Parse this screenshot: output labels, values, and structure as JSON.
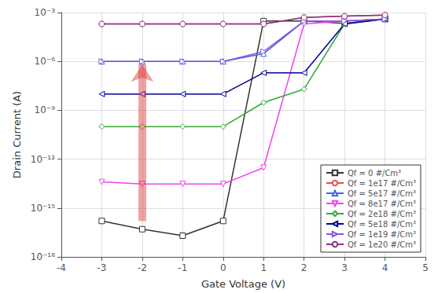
{
  "chart_data": {
    "type": "line",
    "title": "",
    "xlabel": "Gate Voltage (V)",
    "ylabel": "Drain Current (A)",
    "log": "y",
    "grid": true,
    "legend": "lower right",
    "x": [
      -3,
      -2,
      -1,
      0,
      1,
      2,
      3,
      4
    ],
    "xlim": [
      -4,
      5
    ],
    "xticks": [
      -4,
      -3,
      -2,
      -1,
      0,
      1,
      2,
      3,
      4,
      5
    ],
    "ylim": [
      1e-18,
      0.001
    ],
    "yticks": [
      {
        "value": 1e-18,
        "label": "10⁻¹⁸"
      },
      {
        "value": 1e-15,
        "label": "10⁻¹⁵"
      },
      {
        "value": 1e-12,
        "label": "10⁻¹²"
      },
      {
        "value": 1e-09,
        "label": "10⁻⁹"
      },
      {
        "value": 1e-06,
        "label": "10⁻⁶"
      },
      {
        "value": 0.001,
        "label": "10⁻³"
      }
    ],
    "series": [
      {
        "name": "Qf = 0 #/Cm³",
        "color": "#333333",
        "marker": "square",
        "values": [
          1.6e-16,
          5e-17,
          2e-17,
          1.6e-16,
          0.0003,
          0.0003,
          0.00022,
          0.0004
        ]
      },
      {
        "name": "Qf = 1e17 #/Cm³",
        "color": "#e05050",
        "marker": "circle",
        "values": [
          0.0002,
          0.0002,
          0.0002,
          0.0002,
          0.0002,
          0.0005,
          0.0006,
          0.0007
        ]
      },
      {
        "name": "Qf = 5e17 #/Cm³",
        "color": "#4466dd",
        "marker": "triangle-up",
        "values": [
          1e-06,
          1e-06,
          1e-06,
          1e-06,
          3e-06,
          0.0003,
          0.0003,
          0.0004
        ]
      },
      {
        "name": "Qf = 8e17 #/Cm³",
        "color": "#ee44ee",
        "marker": "triangle-down",
        "values": [
          4e-14,
          3e-14,
          3e-14,
          3e-14,
          3e-13,
          0.0002,
          0.0003,
          0.0004
        ]
      },
      {
        "name": "Qf = 2e18 #/Cm³",
        "color": "#33aa33",
        "marker": "diamond",
        "values": [
          1e-10,
          1e-10,
          1e-10,
          1e-10,
          3e-09,
          2e-08,
          0.0002,
          0.0004
        ]
      },
      {
        "name": "Qf = 5e18 #/Cm³",
        "color": "#000099",
        "marker": "triangle-left",
        "values": [
          1e-08,
          1e-08,
          1e-08,
          1e-08,
          2e-07,
          2e-07,
          0.0002,
          0.0004
        ]
      },
      {
        "name": "Qf = 1e19 #/Cm³",
        "color": "#8855dd",
        "marker": "triangle-right",
        "values": [
          1e-06,
          1e-06,
          1e-06,
          1e-06,
          4e-06,
          0.0003,
          0.0003,
          0.0004
        ]
      },
      {
        "name": "Qf = 1e20 #/Cm³",
        "color": "#883388",
        "marker": "circle",
        "values": [
          0.0002,
          0.0002,
          0.0002,
          0.0002,
          0.0002,
          0.0005,
          0.0006,
          0.0007
        ]
      }
    ],
    "arrow": {
      "x": -2,
      "y_start": 1.5848931924611133e-16,
      "y_end": 6.309573444801933e-07,
      "color": "#dd3333"
    }
  }
}
